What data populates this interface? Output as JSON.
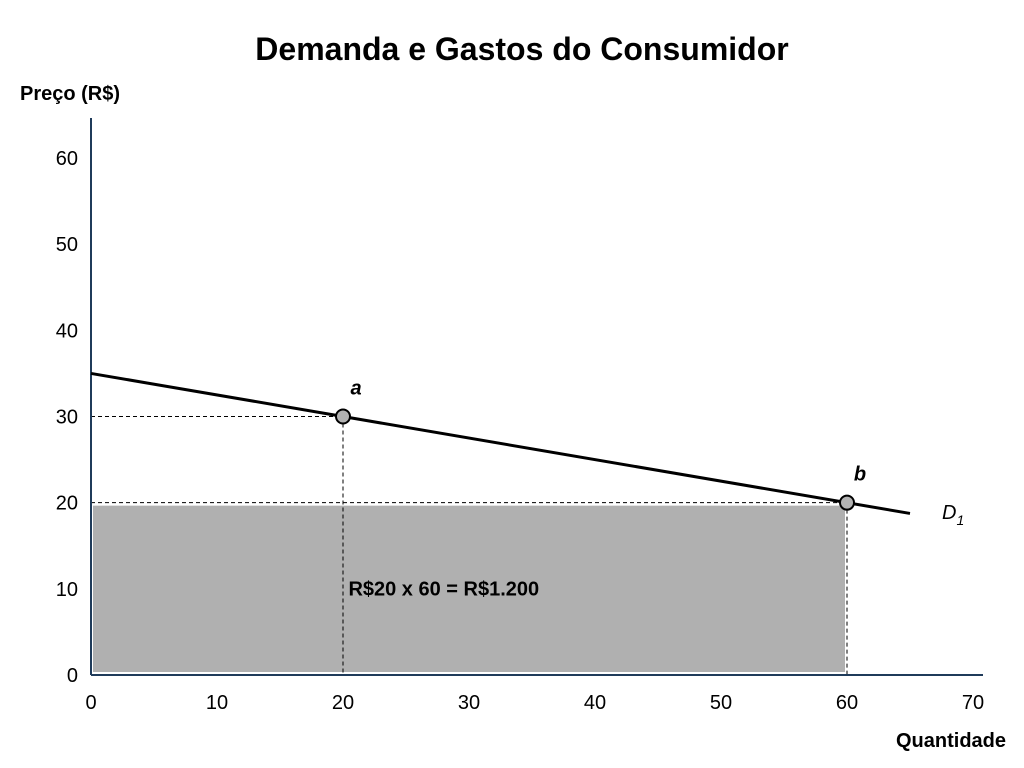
{
  "chart_data": {
    "type": "line",
    "title": "Demanda e Gastos do Consumidor",
    "ylabel": "Preço (R$)",
    "xlabel": "Quantidade",
    "xlim": [
      0,
      70
    ],
    "ylim": [
      0,
      60
    ],
    "x_ticks": [
      0,
      10,
      20,
      30,
      40,
      50,
      60,
      70
    ],
    "y_ticks": [
      0,
      10,
      20,
      30,
      40,
      50,
      60
    ],
    "grid": false,
    "series": [
      {
        "name": "D1",
        "label_main": "D",
        "label_sub": "1",
        "x": [
          0,
          65
        ],
        "y": [
          35,
          18.75
        ],
        "color": "#000000"
      }
    ],
    "points": [
      {
        "label": "a",
        "x": 20,
        "y": 30
      },
      {
        "label": "b",
        "x": 60,
        "y": 20
      }
    ],
    "shaded_area": {
      "x0": 0,
      "x1": 60,
      "y0": 0,
      "y1": 20,
      "color": "#b0b0b0",
      "label": "R$20 x 60 = R$1.200"
    },
    "colors": {
      "axis": "#1f3b5a",
      "curve": "#000000",
      "point_fill": "#b3b3b3",
      "guide": "#000000"
    }
  }
}
